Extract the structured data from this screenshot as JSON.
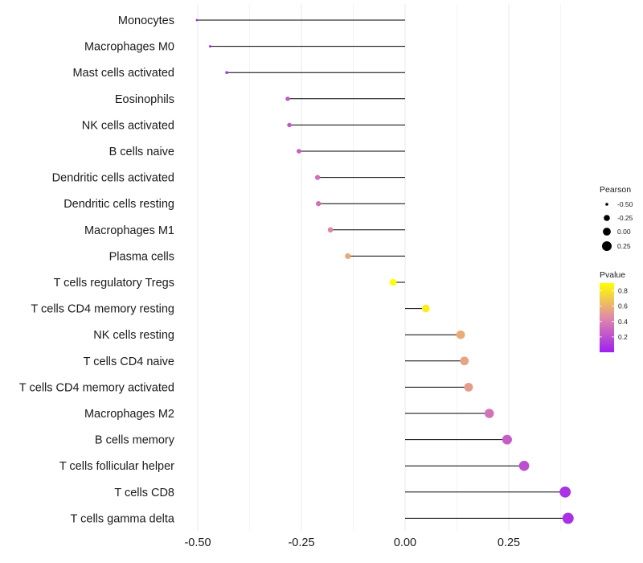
{
  "chart_data": {
    "type": "lollipop",
    "title": "",
    "xlabel": "",
    "ylabel": "",
    "xlim": [
      -0.52,
      0.455
    ],
    "x_ticks": [
      -0.5,
      -0.25,
      0.0,
      0.25
    ],
    "x_tick_labels": [
      "-0.50",
      "-0.25",
      "0.00",
      "0.25"
    ],
    "grid": true,
    "legend_position": "right",
    "categories": [
      "Monocytes",
      "Macrophages M0",
      "Mast cells activated",
      "Eosinophils",
      "NK cells activated",
      "B cells naive",
      "Dendritic cells activated",
      "Dendritic cells resting",
      "Macrophages M1",
      "Plasma cells",
      "T cells regulatory  Tregs",
      "T cells CD4 memory resting",
      "NK cells resting",
      "T cells CD4 naive",
      "T cells CD4 memory activated",
      "Macrophages M2",
      "B cells memory",
      "T cells follicular helper",
      "T cells CD8",
      "T cells gamma delta"
    ],
    "pearson": [
      -0.502,
      -0.47,
      -0.43,
      -0.283,
      -0.279,
      -0.256,
      -0.211,
      -0.209,
      -0.18,
      -0.138,
      -0.029,
      0.05,
      0.134,
      0.143,
      0.153,
      0.203,
      0.246,
      0.287,
      0.386,
      0.393
    ],
    "pvalue": [
      0.02,
      0.03,
      0.06,
      0.23,
      0.24,
      0.27,
      0.33,
      0.34,
      0.43,
      0.58,
      0.92,
      0.83,
      0.58,
      0.55,
      0.52,
      0.35,
      0.26,
      0.2,
      0.08,
      0.07
    ],
    "legend_size": {
      "title": "Pearson",
      "values": [
        -0.5,
        -0.25,
        0.0,
        0.25
      ],
      "labels": [
        "-0.50",
        "-0.25",
        "0.00",
        "0.25"
      ]
    },
    "legend_color": {
      "title": "Pvalue",
      "range": [
        0.0,
        0.9
      ],
      "ticks": [
        0.2,
        0.4,
        0.6,
        0.8
      ],
      "labels": [
        "0.2",
        "0.4",
        "0.6",
        "0.8"
      ],
      "low_color": "#a020f0",
      "mid_color": "#e08aa8",
      "high_color": "#ffff00"
    }
  }
}
